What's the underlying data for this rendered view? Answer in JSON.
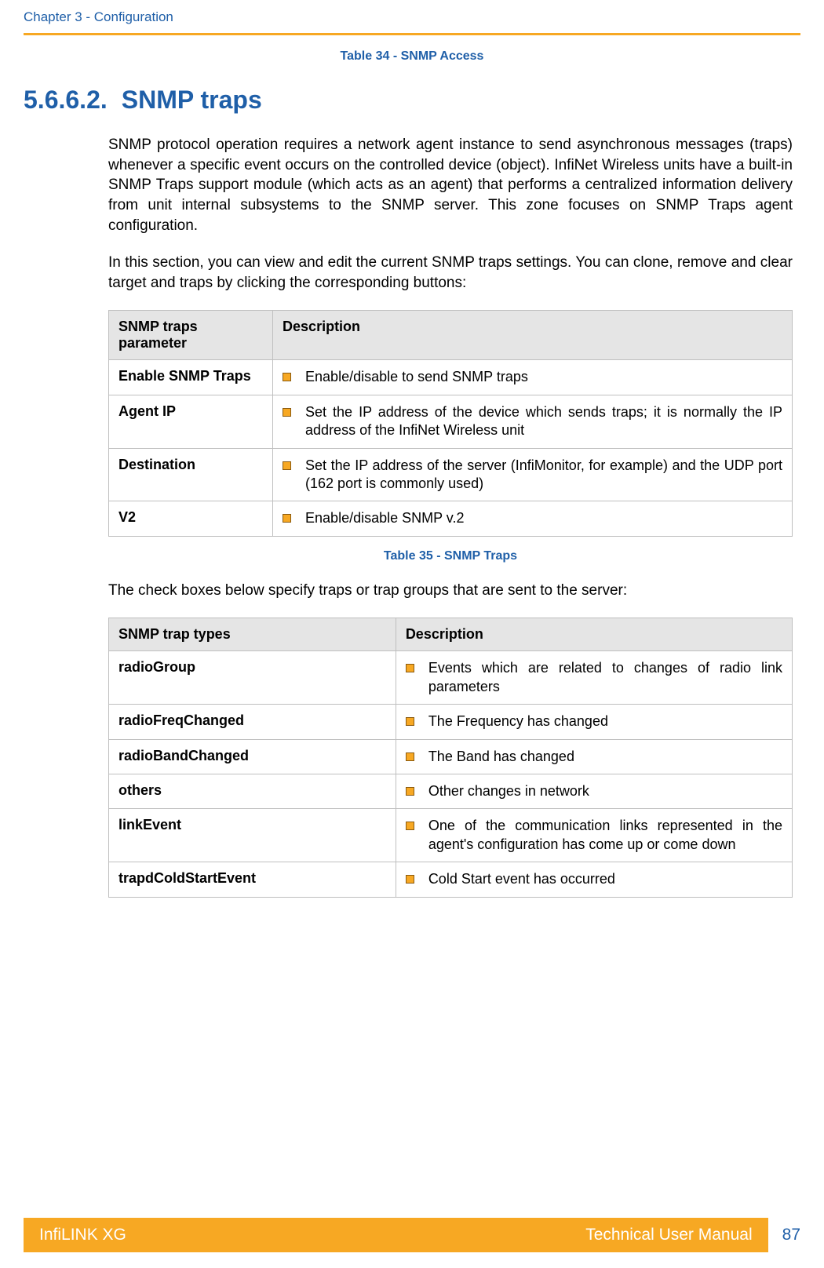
{
  "colors": {
    "accent_blue": "#1f5fa8",
    "accent_orange": "#f7a823",
    "table_header_bg": "#e5e5e5",
    "table_border": "#bfbfbf",
    "bullet_fill": "#f7a823",
    "bullet_border": "#8a5a10",
    "body_text": "#000000",
    "footer_text": "#ffffff"
  },
  "header": {
    "chapter_label": "Chapter 3 - Configuration"
  },
  "caption_top": "Table 34 - SNMP Access",
  "section": {
    "number": "5.6.6.2.",
    "title": "SNMP traps"
  },
  "paragraphs": {
    "p1": "SNMP protocol operation requires a network agent instance to send asynchronous messages (traps) whenever a specific event occurs on the controlled device (object). InfiNet Wireless units have a built-in SNMP Traps support module (which acts as an agent) that performs a centralized information delivery from unit internal subsystems to the SNMP server. This zone focuses on SNMP Traps agent configuration.",
    "p2": "In this section, you can view and edit the current SNMP traps settings. You can clone, remove and clear target and traps by clicking the corresponding buttons:",
    "p3": "The check boxes below specify traps or trap groups that are sent to the server:"
  },
  "table1": {
    "headers": {
      "col1": "SNMP traps parameter",
      "col2": "Description"
    },
    "rows": [
      {
        "param": "Enable SNMP Traps",
        "desc": "Enable/disable to send SNMP traps"
      },
      {
        "param": "Agent IP",
        "desc": "Set the IP address of the device which sends traps; it is normally the IP address of the InfiNet Wireless unit"
      },
      {
        "param": "Destination",
        "desc": "Set the IP address of the server (InfiMonitor, for example) and the UDP port (162 port is commonly used)"
      },
      {
        "param": "V2",
        "desc": "Enable/disable SNMP v.2"
      }
    ]
  },
  "caption_mid": "Table 35 - SNMP Traps",
  "table2": {
    "headers": {
      "col1": "SNMP trap types",
      "col2": "Description"
    },
    "rows": [
      {
        "param": "radioGroup",
        "desc": "Events which are related to changes of radio link parameters"
      },
      {
        "param": "radioFreqChanged",
        "desc": "The Frequency has changed"
      },
      {
        "param": "radioBandChanged",
        "desc": "The Band has changed"
      },
      {
        "param": "others",
        "desc": "Other changes in network"
      },
      {
        "param": "linkEvent",
        "desc": "One of the communication links represented in the agent's configuration has come up or come down"
      },
      {
        "param": "trapdColdStartEvent",
        "desc": "Cold Start event has occurred"
      }
    ]
  },
  "footer": {
    "left": "InfiLINK XG",
    "right": "Technical User Manual",
    "page": "87"
  }
}
